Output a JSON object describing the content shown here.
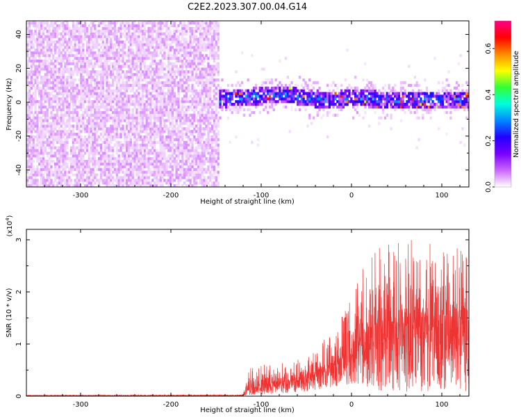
{
  "figure_title": "C2E2.2023.307.00.04.G14",
  "colors": {
    "snr_line": "#ee3333",
    "axis": "#000000"
  },
  "chart_data": [
    {
      "type": "heatmap",
      "xlabel": "Height of straight line (km)",
      "ylabel": "Frequency (Hz)",
      "xlim": [
        -360,
        130
      ],
      "ylim": [
        -50,
        48
      ],
      "x_ticks": [
        -300,
        -200,
        -100,
        0,
        100
      ],
      "y_ticks": [
        -40,
        -20,
        0,
        20,
        40
      ],
      "colorbar": {
        "label": "Normalized spectral amplitude",
        "range": [
          0,
          0.72
        ],
        "ticks": [
          0.0,
          0.2,
          0.4,
          0.6
        ],
        "tick_labels": [
          "0.0",
          "0.2",
          "0.4",
          "0.6"
        ],
        "colormap": [
          "#ffffff",
          "#cc66ff",
          "#7700ff",
          "#2200ff",
          "#0088ff",
          "#00ffdd",
          "#33ff33",
          "#ffff00",
          "#ff8800",
          "#ff0000",
          "#ff0088"
        ]
      },
      "noise_region": {
        "x_range": [
          -360,
          -150
        ],
        "freq_range": [
          -50,
          48
        ],
        "typical_amplitude": 0.04
      },
      "signal_track": {
        "x_range": [
          -150,
          130
        ],
        "centre_freq": [
          {
            "x": -150,
            "f": 1
          },
          {
            "x": -100,
            "f": 3
          },
          {
            "x": -75,
            "f": 4
          },
          {
            "x": -50,
            "f": 2
          },
          {
            "x": -25,
            "f": 0
          },
          {
            "x": 0,
            "f": 2
          },
          {
            "x": 25,
            "f": 1
          },
          {
            "x": 50,
            "f": 0
          },
          {
            "x": 75,
            "f": 1
          },
          {
            "x": 100,
            "f": 1
          },
          {
            "x": 130,
            "f": 1
          }
        ],
        "core_halfwidth_hz": 5,
        "typical_amplitude": 0.3,
        "peak_amplitude": 0.65
      }
    },
    {
      "type": "line",
      "xlabel": "Height of straight line (km)",
      "ylabel": "SNR (10 * v/v)",
      "y_multiplier": "(x10",
      "y_multiplier_exp": "4",
      "y_multiplier_close": ")",
      "xlim": [
        -360,
        130
      ],
      "ylim": [
        0,
        3.2
      ],
      "x_ticks": [
        -300,
        -200,
        -100,
        0,
        100
      ],
      "y_ticks": [
        0,
        1,
        2,
        3
      ],
      "series": [
        {
          "envelope_x": [
            -360,
            -120,
            -115,
            -100,
            -80,
            -60,
            -40,
            -20,
            0,
            10,
            25,
            40,
            60,
            80,
            100,
            130
          ],
          "envelope_low": [
            0.0,
            0.0,
            0.02,
            0.03,
            0.05,
            0.07,
            0.1,
            0.15,
            0.2,
            0.25,
            0.1,
            0.08,
            0.08,
            0.08,
            0.08,
            0.1
          ],
          "envelope_high": [
            0.02,
            0.03,
            0.55,
            0.6,
            0.65,
            0.7,
            0.9,
            1.3,
            1.9,
            2.5,
            2.8,
            3.0,
            3.1,
            2.9,
            3.0,
            2.8
          ],
          "typical": [
            0.01,
            0.01,
            0.1,
            0.15,
            0.2,
            0.25,
            0.35,
            0.5,
            0.7,
            0.9,
            1.0,
            1.1,
            1.1,
            1.1,
            1.1,
            1.1
          ]
        }
      ]
    }
  ]
}
